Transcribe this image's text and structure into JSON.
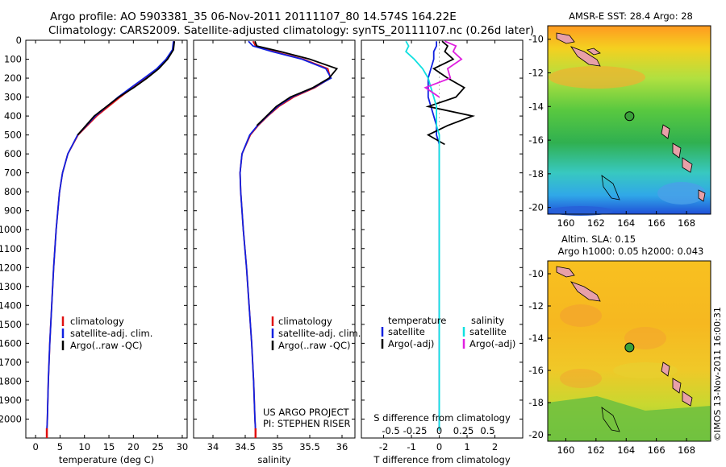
{
  "header": {
    "title1": "Argo profile: AO 5903381_35 06-Nov-2011 20111107_80 14.574S 164.22E",
    "title2": "Climatology: CARS2009. Satellite-adjusted climatology: synTS_20111107.nc (0.26d later)"
  },
  "credits": {
    "project": "US ARGO PROJECT",
    "pi": "PI: STEPHEN RISER",
    "stamp": "©IMOS 13-Nov-2011 16:00:31"
  },
  "legends": {
    "profile": [
      "climatology",
      "satellite-adj. clim.",
      "Argo(..raw -QC)"
    ],
    "diff_temperature_title": "temperature",
    "diff_salinity_title": "salinity",
    "diff_temperature": [
      "satellite",
      "Argo(-adj)"
    ],
    "diff_salinity": [
      "satellite",
      "Argo(-adj)"
    ]
  },
  "colors": {
    "climatology": "#e01010",
    "satellite": "#1020e0",
    "argo": "#000000",
    "sal_satellite": "#10e0e0",
    "sal_argo": "#e020e0",
    "float_marker": "#3aa03a"
  },
  "maps": {
    "sst_title": "AMSR-E SST: 28.4 Argo: 28",
    "sla_title1": "Altim. SLA: 0.15",
    "sla_title2": "Argo h1000: 0.05 h2000: 0.043",
    "lat_ticks": [
      "-10",
      "-12",
      "-14",
      "-16",
      "-18",
      "-20"
    ],
    "lon_ticks": [
      "160",
      "162",
      "164",
      "166",
      "168"
    ],
    "float_lon": 164.22,
    "float_lat": -14.574
  },
  "chart_data": [
    {
      "type": "line",
      "title": "",
      "xlabel": "temperature (deg C)",
      "ylabel": "",
      "xlim": [
        -2,
        31
      ],
      "ylim": [
        2100,
        0
      ],
      "x_ticks": [
        "0",
        "5",
        "10",
        "15",
        "20",
        "25",
        "30"
      ],
      "y_ticks": [
        "0",
        "100",
        "200",
        "300",
        "400",
        "500",
        "600",
        "700",
        "800",
        "900",
        "1000",
        "1100",
        "1200",
        "1300",
        "1400",
        "1500",
        "1600",
        "1700",
        "1800",
        "1900",
        "2000"
      ],
      "depth": [
        5,
        50,
        100,
        150,
        200,
        250,
        300,
        400,
        500,
        600,
        700,
        800,
        1000,
        1200,
        1400,
        1600,
        1800,
        2000,
        2060
      ],
      "series": [
        {
          "name": "climatology",
          "values": [
            28.3,
            28.1,
            26.9,
            25.0,
            22.5,
            19.9,
            17.3,
            12.5,
            8.7,
            6.6,
            5.5,
            4.9,
            4.2,
            3.7,
            3.3,
            2.9,
            2.6,
            2.4,
            2.3
          ]
        },
        {
          "name": "satellite-adj. clim.",
          "values": [
            28.2,
            28.0,
            26.7,
            24.8,
            22.2,
            19.5,
            16.9,
            12.2,
            8.6,
            6.6,
            5.5,
            4.9,
            4.2,
            3.7,
            3.3,
            2.9,
            2.6,
            2.4,
            2.3
          ]
        },
        {
          "name": "Argo(..raw -QC)",
          "values": [
            28.4,
            28.2,
            27.0,
            25.2,
            22.8,
            20.1,
            17.0,
            12.0,
            8.6,
            null,
            null,
            null,
            null,
            null,
            null,
            null,
            null,
            null,
            null
          ]
        }
      ]
    },
    {
      "type": "line",
      "xlabel": "salinity",
      "xlim": [
        33.7,
        36.2
      ],
      "ylim": [
        2100,
        0
      ],
      "x_ticks": [
        "34",
        "34.5",
        "35",
        "35.5",
        "36"
      ],
      "depth": [
        5,
        30,
        60,
        100,
        150,
        200,
        250,
        300,
        350,
        400,
        450,
        500,
        600,
        700,
        800,
        1000,
        1200,
        1400,
        1600,
        1800,
        2000,
        2060
      ],
      "series": [
        {
          "name": "climatology",
          "values": [
            34.62,
            34.66,
            34.95,
            35.4,
            35.78,
            35.82,
            35.58,
            35.25,
            35.02,
            34.85,
            34.7,
            34.58,
            34.45,
            34.42,
            34.43,
            34.47,
            34.52,
            34.56,
            34.6,
            34.63,
            34.65,
            34.66
          ]
        },
        {
          "name": "satellite-adj. clim.",
          "values": [
            34.55,
            34.62,
            34.92,
            35.38,
            35.75,
            35.83,
            35.56,
            35.22,
            35.0,
            34.84,
            34.69,
            34.57,
            34.45,
            34.42,
            34.43,
            34.47,
            34.52,
            34.56,
            34.6,
            34.63,
            34.65,
            34.66
          ]
        },
        {
          "name": "Argo(..raw -QC)",
          "values": [
            34.65,
            34.68,
            35.05,
            35.5,
            35.92,
            35.8,
            35.55,
            35.2,
            34.98,
            34.83,
            34.68,
            null,
            null,
            null,
            null,
            null,
            null,
            null,
            null,
            null,
            null,
            null
          ]
        }
      ]
    },
    {
      "type": "line",
      "title_s": "S difference from climatology",
      "xlabel": "T difference from climatology",
      "s_ticks": [
        "-0.5",
        "-0.25",
        "0",
        "0.25",
        "0.5"
      ],
      "t_ticks": [
        "-2",
        "-1",
        "0",
        "1",
        "2"
      ],
      "xlim_t": [
        -2.8,
        3.0
      ],
      "ylim": [
        2100,
        0
      ],
      "depth": [
        5,
        30,
        60,
        100,
        150,
        200,
        250,
        300,
        350,
        400,
        450,
        500,
        550,
        600,
        700,
        800,
        1000,
        1200,
        1500,
        1800,
        2000,
        2060
      ],
      "series": [
        {
          "name": "temperature satellite",
          "values": [
            -0.1,
            -0.1,
            -0.2,
            -0.2,
            -0.3,
            -0.4,
            -0.4,
            -0.4,
            -0.3,
            -0.2,
            -0.1,
            -0.1,
            0.0,
            0.0,
            0.0,
            0.0,
            0.0,
            0.0,
            0.0,
            0.0,
            0.0,
            0.0
          ]
        },
        {
          "name": "temperature Argo(-adj)",
          "values": [
            0.1,
            0.3,
            0.2,
            0.5,
            -0.2,
            0.3,
            0.9,
            0.6,
            -0.4,
            1.2,
            0.3,
            -0.4,
            0.2,
            null,
            null,
            null,
            null,
            null,
            null,
            null,
            null,
            null
          ]
        },
        {
          "name": "salinity satellite",
          "values": [
            -1.2,
            -1.1,
            -1.2,
            -0.9,
            -0.6,
            -0.4,
            -0.3,
            -0.2,
            -0.1,
            -0.1,
            -0.1,
            0.0,
            0.0,
            0.0,
            0.0,
            0.0,
            0.0,
            0.0,
            0.0,
            0.0,
            0.0,
            0.0
          ]
        },
        {
          "name": "salinity Argo(-adj)",
          "values": [
            0.2,
            0.6,
            0.5,
            0.8,
            0.3,
            0.4,
            -0.5,
            0.0,
            null,
            null,
            null,
            null,
            null,
            null,
            null,
            null,
            null,
            null,
            null,
            null,
            null,
            null
          ]
        }
      ]
    }
  ]
}
